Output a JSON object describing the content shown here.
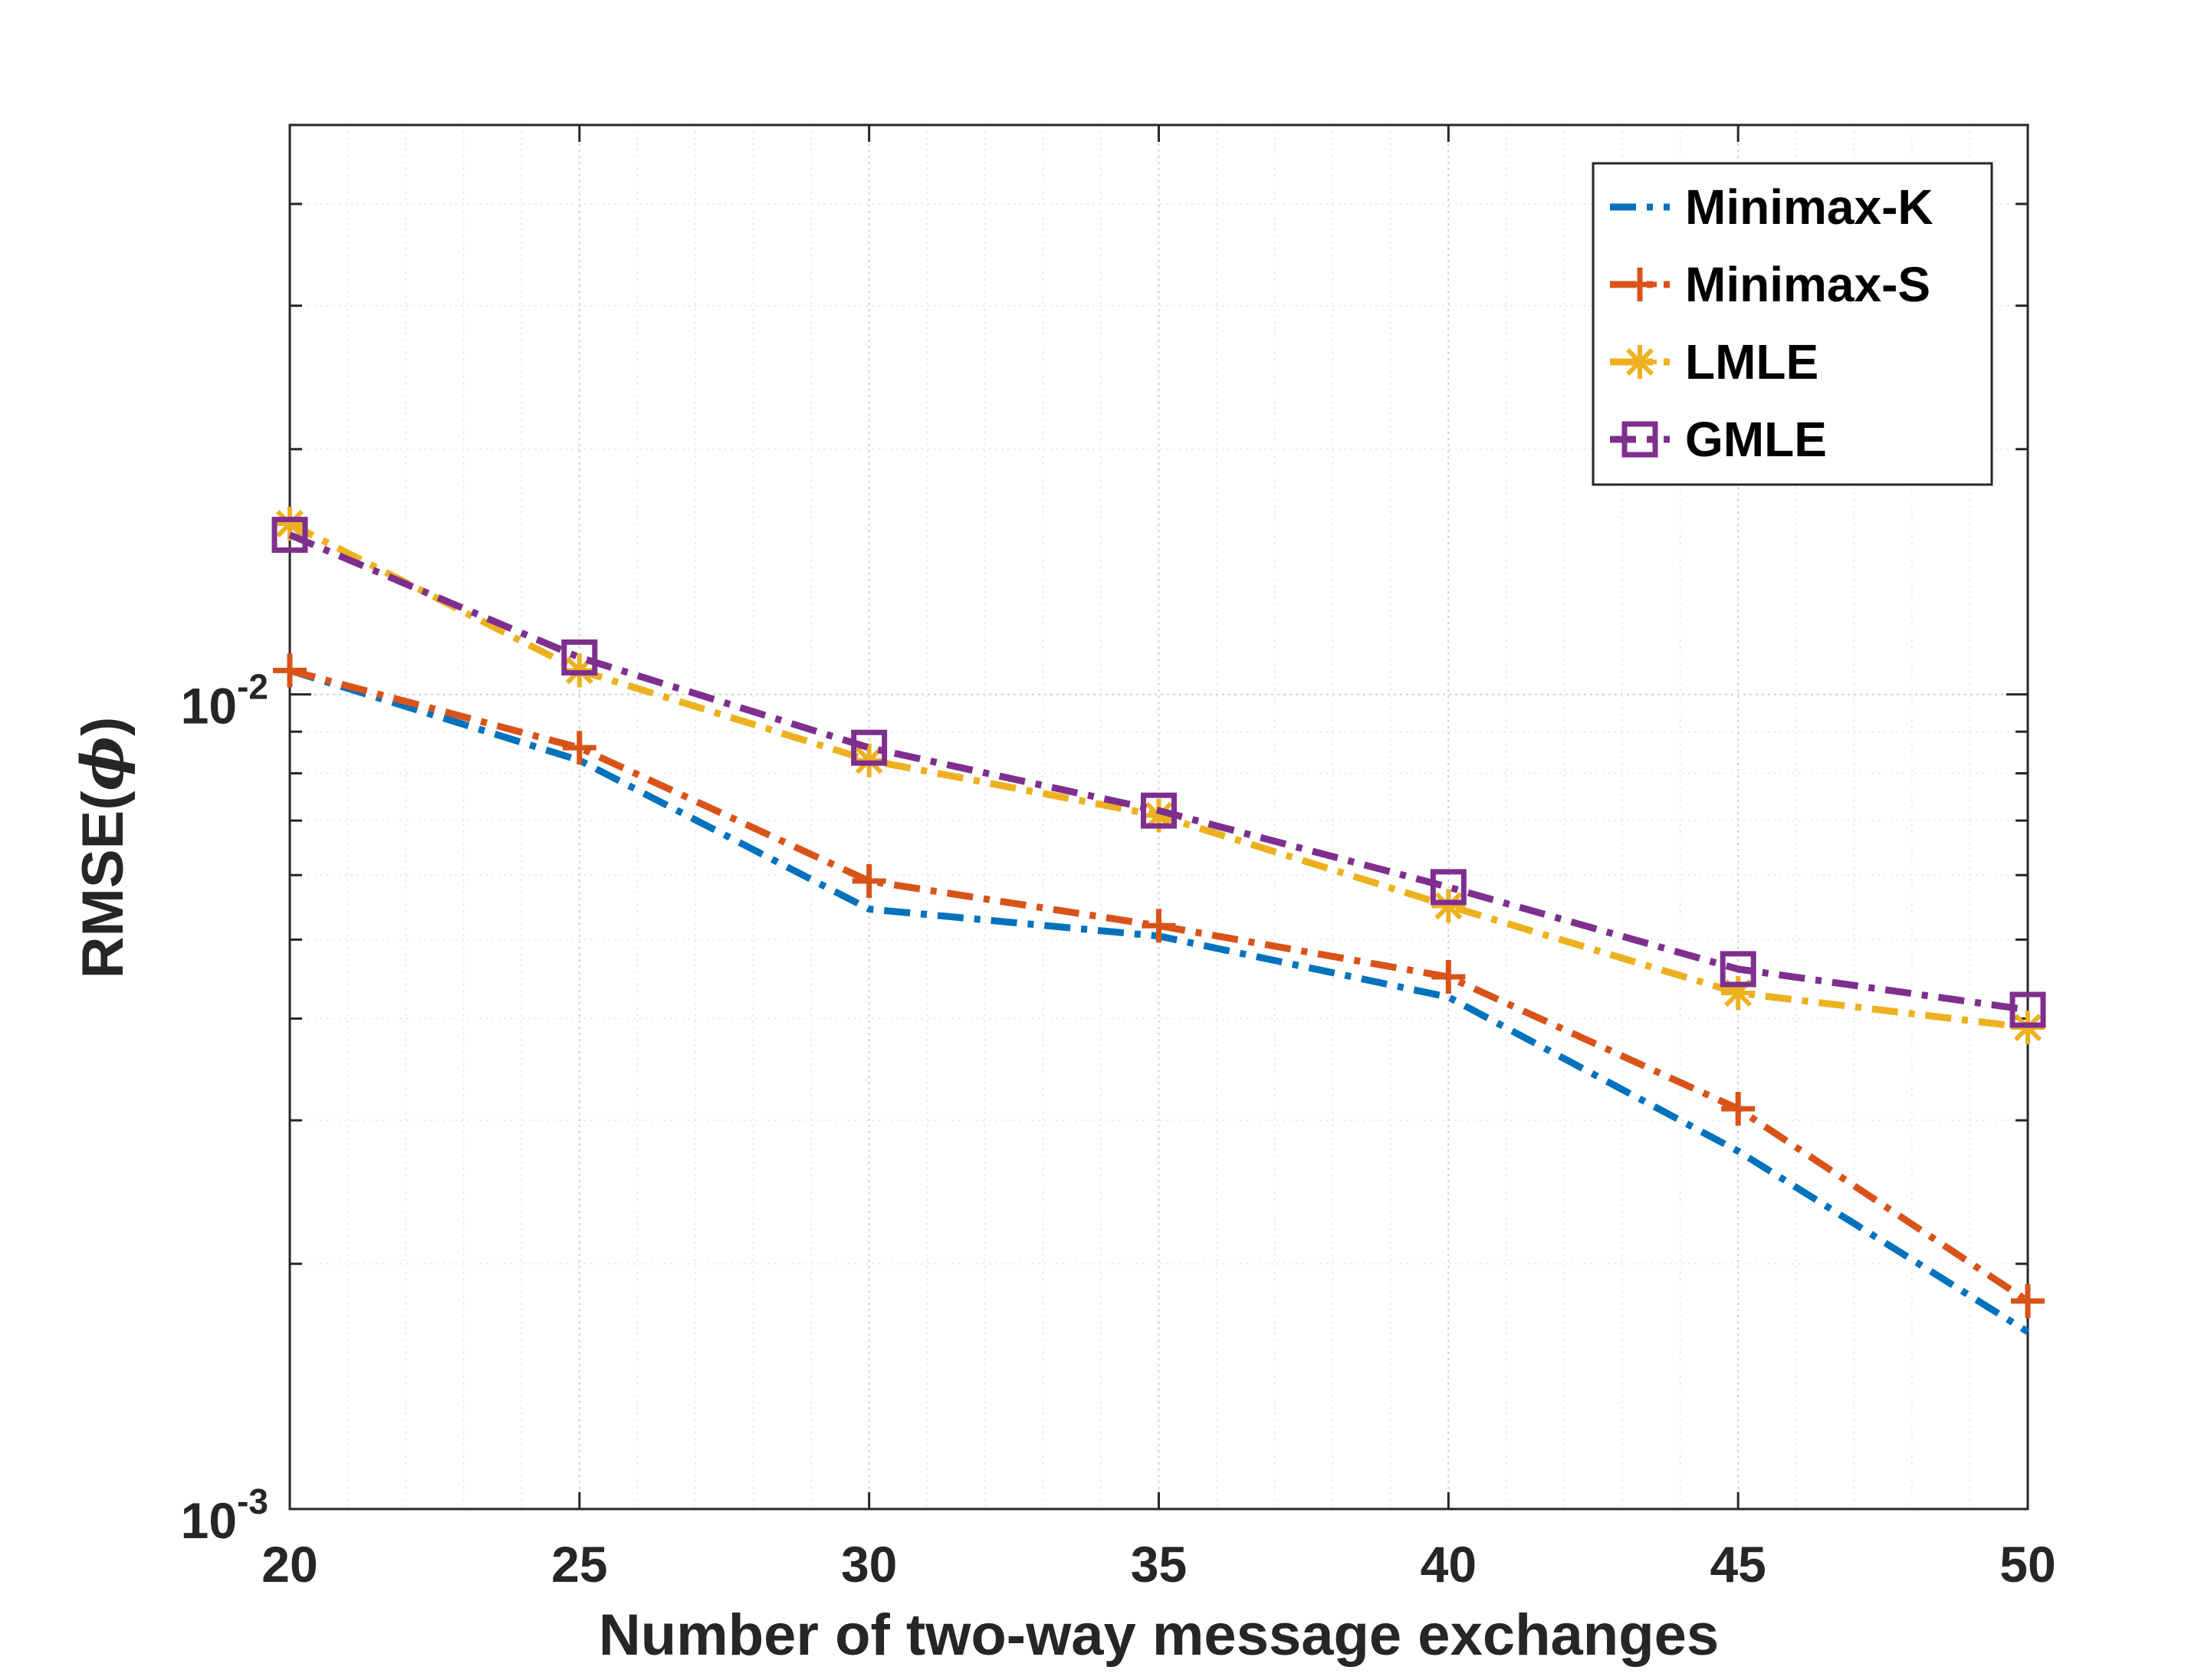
{
  "chart_data": {
    "type": "line",
    "xlabel": "Number of two-way message exchanges",
    "ylabel_prefix": "RMSE(",
    "ylabel_symbol": "ϕ",
    "ylabel_suffix": ")",
    "x": [
      20,
      25,
      30,
      35,
      40,
      45,
      50
    ],
    "xlim": [
      20,
      50
    ],
    "xticks": [
      "20",
      "25",
      "30",
      "35",
      "40",
      "45",
      "50"
    ],
    "yscale": "log",
    "ylim": [
      0.001,
      0.05
    ],
    "yticks": [
      {
        "value": 0.01,
        "base": "10",
        "exp": "-2"
      },
      {
        "value": 0.001,
        "base": "10",
        "exp": "-3"
      }
    ],
    "grid": "on (major and minor)",
    "legend_position": "top-right",
    "series": [
      {
        "name": "Minimax-K",
        "values": [
          0.0107,
          0.0083,
          0.00545,
          0.00505,
          0.00425,
          0.00275,
          0.00165
        ],
        "color": "#0072BD",
        "marker": "none",
        "line": "dash-dot"
      },
      {
        "name": "Minimax-S",
        "values": [
          0.0107,
          0.0086,
          0.0059,
          0.0052,
          0.0045,
          0.0031,
          0.0018
        ],
        "color": "#D95319",
        "marker": "plus",
        "line": "dash-dot"
      },
      {
        "name": "LMLE",
        "values": [
          0.0162,
          0.0107,
          0.0083,
          0.0071,
          0.0055,
          0.0043,
          0.0039
        ],
        "color": "#EDB120",
        "marker": "asterisk",
        "line": "dash-dot"
      },
      {
        "name": "GMLE",
        "values": [
          0.0157,
          0.0111,
          0.0086,
          0.0072,
          0.0058,
          0.0046,
          0.0041
        ],
        "color": "#7E2F8E",
        "marker": "square",
        "line": "dash-dot"
      }
    ]
  }
}
